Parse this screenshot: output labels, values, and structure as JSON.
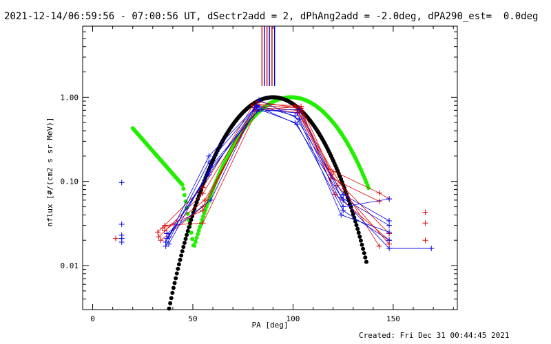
{
  "title": "2021-12-14/06:59:56 - 07:00:56 UT, dSectr2add = 2, dPhAng2add = -2.0deg, dPA290_est=  0.0deg",
  "created": "Created: Fri Dec 31 00:44:45 2021",
  "chart_data": {
    "type": "line",
    "xlabel": "PA [deg]",
    "ylabel": "nflux [#/(cm2 s sr MeV)]",
    "xlim": [
      -5,
      182
    ],
    "ylim": [
      0.003,
      7
    ],
    "yscale": "log",
    "xticks": [
      {
        "v": 0,
        "label": "0"
      },
      {
        "v": 50,
        "label": "50"
      },
      {
        "v": 100,
        "label": "100"
      },
      {
        "v": 150,
        "label": "150"
      }
    ],
    "yticks": [
      {
        "v": 0.01,
        "label": "0.01"
      },
      {
        "v": 0.1,
        "label": "0.10"
      },
      {
        "v": 1,
        "label": "1.00"
      }
    ],
    "colors": {
      "red": "#dd0000",
      "blue": "#0000dd",
      "green": "#22ee00",
      "black": "#000000"
    },
    "top_markers": [
      {
        "x": 84.5,
        "color": "#dd0000"
      },
      {
        "x": 85.7,
        "color": "#0000dd"
      },
      {
        "x": 87.0,
        "color": "#dd0000"
      },
      {
        "x": 88.2,
        "color": "#0000dd"
      },
      {
        "x": 89.5,
        "color": "#dd0000"
      },
      {
        "x": 90.8,
        "color": "#0000dd"
      }
    ],
    "black_curve": {
      "peak_x": 90,
      "x_start": 20,
      "x_end": 137
    },
    "green_curve": {
      "peak_x": 99,
      "x_start": 20,
      "x_end": 138
    },
    "series": [
      {
        "color": "#dd0000",
        "points": [
          [
            32.5,
            0.025
          ],
          [
            55,
            0.085
          ],
          [
            80,
            0.8
          ],
          [
            103,
            0.75
          ],
          [
            118,
            0.14
          ],
          [
            143,
            0.073
          ],
          [
            148,
            0.062
          ]
        ]
      },
      {
        "color": "#dd0000",
        "points": [
          [
            33,
            0.022
          ],
          [
            55,
            0.072
          ],
          [
            81,
            0.76
          ],
          [
            102,
            0.7
          ],
          [
            119,
            0.11
          ],
          [
            143,
            0.058
          ]
        ]
      },
      {
        "color": "#dd0000",
        "points": [
          [
            34,
            0.02
          ],
          [
            55,
            0.05
          ],
          [
            81,
            0.72
          ],
          [
            103,
            0.66
          ],
          [
            120,
            0.13
          ],
          [
            143,
            0.017
          ]
        ]
      },
      {
        "color": "#dd0000",
        "points": [
          [
            35,
            0.028
          ],
          [
            55,
            0.045
          ],
          [
            82,
            0.88
          ],
          [
            104,
            0.74
          ],
          [
            121,
            0.07
          ],
          [
            148,
            0.02
          ]
        ]
      },
      {
        "color": "#dd0000",
        "points": [
          [
            36,
            0.03
          ],
          [
            55,
            0.032
          ],
          [
            82,
            0.7
          ],
          [
            104,
            0.78
          ],
          [
            122,
            0.09
          ],
          [
            148,
            0.018
          ]
        ]
      },
      {
        "color": "#dd0000",
        "points": [
          [
            36,
            0.026
          ],
          [
            56,
            0.06
          ],
          [
            83,
            0.82
          ],
          [
            101,
            0.8
          ],
          [
            119,
            0.12
          ],
          [
            148,
            0.024
          ]
        ]
      },
      {
        "color": "#0000dd",
        "points": [
          [
            36.5,
            0.019
          ],
          [
            58,
            0.2
          ],
          [
            81,
            0.75
          ],
          [
            101,
            0.5
          ],
          [
            125,
            0.06
          ],
          [
            148,
            0.016
          ],
          [
            169,
            0.016
          ]
        ]
      },
      {
        "color": "#0000dd",
        "points": [
          [
            36.5,
            0.017
          ],
          [
            58,
            0.17
          ],
          [
            82,
            0.78
          ],
          [
            102,
            0.48
          ],
          [
            125,
            0.045
          ],
          [
            148,
            0.02
          ]
        ]
      },
      {
        "color": "#0000dd",
        "points": [
          [
            37,
            0.021
          ],
          [
            58,
            0.12
          ],
          [
            82,
            0.8
          ],
          [
            101,
            0.6
          ],
          [
            125,
            0.07
          ],
          [
            148,
            0.034
          ]
        ]
      },
      {
        "color": "#0000dd",
        "points": [
          [
            37,
            0.024
          ],
          [
            59,
            0.06
          ],
          [
            83,
            0.93
          ],
          [
            103,
            0.55
          ],
          [
            124,
            0.04
          ],
          [
            148,
            0.025
          ]
        ]
      },
      {
        "color": "#0000dd",
        "points": [
          [
            38,
            0.018
          ],
          [
            59,
            0.15
          ],
          [
            83,
            0.72
          ],
          [
            102,
            0.65
          ],
          [
            125,
            0.05
          ],
          [
            148,
            0.062
          ]
        ]
      },
      {
        "color": "#0000dd",
        "points": [
          [
            38,
            0.022
          ],
          [
            58,
            0.13
          ],
          [
            82,
            0.68
          ],
          [
            103,
            0.72
          ],
          [
            124,
            0.065
          ],
          [
            148,
            0.03
          ]
        ]
      }
    ],
    "isolated_points": [
      {
        "x": 11.5,
        "y": 0.021,
        "color": "#dd0000"
      },
      {
        "x": 14.5,
        "y": 0.097,
        "color": "#0000dd"
      },
      {
        "x": 14.5,
        "y": 0.031,
        "color": "#0000dd"
      },
      {
        "x": 14.5,
        "y": 0.023,
        "color": "#0000dd"
      },
      {
        "x": 14.5,
        "y": 0.021,
        "color": "#0000dd"
      },
      {
        "x": 14.5,
        "y": 0.019,
        "color": "#0000dd"
      },
      {
        "x": 166,
        "y": 0.043,
        "color": "#dd0000"
      },
      {
        "x": 166,
        "y": 0.032,
        "color": "#dd0000"
      },
      {
        "x": 166,
        "y": 0.02,
        "color": "#dd0000"
      }
    ]
  }
}
